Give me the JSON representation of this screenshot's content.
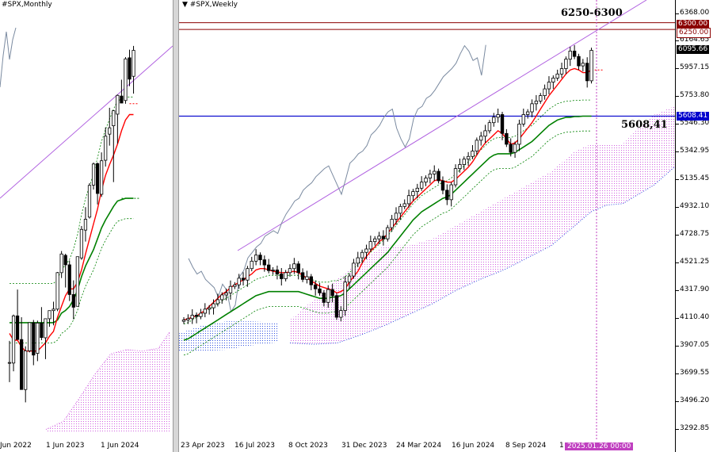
{
  "colors": {
    "bull": "#000000",
    "bear": "#000000",
    "tenkan": "#ff0000",
    "kijun": "#008000",
    "chikou": "#7a8aa0",
    "senkou_a": "#d060e0",
    "senkou_b": "#3050e0",
    "trendline": "#b060e0",
    "level_red": "#8b0000",
    "level_blue": "#0000cd",
    "vline": "#c040c0"
  },
  "monthly": {
    "title": "#SPX,Monthly",
    "time_labels": [
      "Jun 2022",
      "1 Jun 2023",
      "1 Jun 2024"
    ]
  },
  "weekly": {
    "title": "#SPX,Weekly",
    "time_labels": [
      "23 Apr 2023",
      "16 Jul 2023",
      "8 Oct 2023",
      "31 Dec 2023",
      "24 Mar 2024",
      "16 Jun 2024",
      "8 Sep 2024",
      "1"
    ],
    "cursor_time_label": "2025.01.26 00:00",
    "annotation_top": "6250-6300",
    "annotation_level": "5608,41"
  },
  "price_axis": {
    "ticks": [
      "6368.00",
      "6164.65",
      "5957.15",
      "5753.80",
      "5546.30",
      "5342.95",
      "5135.45",
      "4932.10",
      "4728.75",
      "4521.25",
      "4317.90",
      "4110.40",
      "3907.05",
      "3699.55",
      "3496.20",
      "3292.85"
    ],
    "tag_6300": "6300.00",
    "tag_6250": "6250.00",
    "tag_current": "6095.66",
    "tag_5608": "5608.41"
  },
  "chart_data": [
    {
      "type": "candlestick",
      "title": "#SPX,Monthly",
      "x": [
        "Jun 2022",
        "Jul 2022",
        "Aug 2022",
        "Sep 2022",
        "Oct 2022",
        "Nov 2022",
        "Dec 2022",
        "Jan 2023",
        "Feb 2023",
        "Mar 2023",
        "Apr 2023",
        "May 2023",
        "Jun 2023",
        "Jul 2023",
        "Aug 2023",
        "Sep 2023",
        "Oct 2023",
        "Nov 2023",
        "Dec 2023",
        "Jan 2024",
        "Feb 2024",
        "Mar 2024",
        "Apr 2024",
        "May 2024",
        "Jun 2024",
        "Jul 2024",
        "Aug 2024",
        "Sep 2024",
        "Oct 2024",
        "Nov 2024",
        "Dec 2024",
        "Jan 2025"
      ],
      "open": [
        3785,
        3781,
        4130,
        3955,
        3585,
        3871,
        4080,
        3853,
        4077,
        3968,
        4109,
        4169,
        4180,
        4450,
        4578,
        4508,
        4288,
        4201,
        4559,
        4765,
        4861,
        5098,
        5257,
        5030,
        5282,
        5475,
        5537,
        5623,
        5757,
        5724,
        6040,
        5903
      ],
      "high": [
        3945,
        4140,
        4325,
        4120,
        3905,
        4080,
        4100,
        4095,
        4195,
        4110,
        4170,
        4235,
        4455,
        4610,
        4590,
        4540,
        4393,
        4560,
        4795,
        4935,
        5112,
        5265,
        5265,
        5340,
        5525,
        5670,
        5652,
        5768,
        5878,
        6045,
        6100,
        6128
      ],
      "low": [
        3640,
        3720,
        3955,
        3585,
        3490,
        3860,
        3765,
        3795,
        3950,
        3810,
        4050,
        4060,
        4165,
        4410,
        4340,
        4240,
        4105,
        4200,
        4545,
        4680,
        4850,
        5065,
        4955,
        5010,
        5235,
        5390,
        5120,
        5405,
        5705,
        5700,
        5830,
        5775
      ],
      "close": [
        3785,
        4130,
        3955,
        3585,
        3871,
        4080,
        3840,
        4077,
        3970,
        4109,
        4169,
        4180,
        4450,
        4588,
        4508,
        4288,
        4194,
        4568,
        4770,
        4845,
        5096,
        5254,
        5036,
        5278,
        5460,
        5522,
        5648,
        5762,
        5705,
        6032,
        5882,
        6095
      ],
      "series": [
        {
          "name": "tenkan",
          "values": [
            4000,
            3950,
            3950,
            3900,
            3870,
            3870,
            3870,
            3870,
            3900,
            3930,
            3980,
            4015,
            4120,
            4200,
            4280,
            4330,
            4330,
            4380,
            4470,
            4590,
            4700,
            4810,
            4920,
            5060,
            5170,
            5250,
            5320,
            5400,
            5500,
            5580,
            5620,
            5620
          ]
        },
        {
          "name": "kijun",
          "values": [
            4080,
            4080,
            4080,
            4080,
            4080,
            4080,
            4080,
            4080,
            4080,
            4080,
            4080,
            4080,
            4100,
            4150,
            4170,
            4200,
            4250,
            4320,
            4420,
            4500,
            4560,
            4620,
            4700,
            4780,
            4840,
            4890,
            4940,
            4980,
            4990,
            5000,
            5000,
            5000
          ]
        }
      ]
    },
    {
      "type": "candlestick",
      "title": "#SPX,Weekly",
      "x_ticks": [
        "23 Apr 2023",
        "16 Jul 2023",
        "8 Oct 2023",
        "31 Dec 2023",
        "24 Mar 2024",
        "16 Jun 2024",
        "8 Sep 2024",
        "1"
      ],
      "close": [
        4100,
        4110,
        4135,
        4125,
        4150,
        4180,
        4190,
        4220,
        4250,
        4285,
        4300,
        4348,
        4360,
        4409,
        4395,
        4480,
        4535,
        4580,
        4545,
        4507,
        4465,
        4470,
        4440,
        4405,
        4450,
        4480,
        4515,
        4450,
        4400,
        4420,
        4360,
        4330,
        4300,
        4230,
        4325,
        4280,
        4120,
        4170,
        4380,
        4425,
        4520,
        4560,
        4600,
        4625,
        4680,
        4700,
        4720,
        4700,
        4783,
        4845,
        4890,
        4940,
        4960,
        5020,
        5050,
        5075,
        5120,
        5150,
        5180,
        5200,
        5130,
        5060,
        4990,
        5100,
        5220,
        5250,
        5290,
        5310,
        5350,
        5430,
        5460,
        5500,
        5560,
        5600,
        5620,
        5480,
        5400,
        5340,
        5400,
        5550,
        5620,
        5640,
        5700,
        5720,
        5760,
        5810,
        5860,
        5890,
        5920,
        5960,
        6030,
        6090,
        6050,
        5980,
        6000,
        5870,
        6095
      ],
      "series": [
        {
          "name": "tenkan",
          "values": [
            4100,
            4110,
            4120,
            4130,
            4150,
            4170,
            4200,
            4230,
            4260,
            4290,
            4310,
            4340,
            4360,
            4380,
            4395,
            4420,
            4440,
            4470,
            4480,
            4480,
            4470,
            4460,
            4455,
            4450,
            4450,
            4455,
            4460,
            4450,
            4430,
            4410,
            4390,
            4370,
            4350,
            4340,
            4330,
            4320,
            4300,
            4310,
            4330,
            4380,
            4420,
            4460,
            4520,
            4570,
            4610,
            4640,
            4680,
            4700,
            4740,
            4780,
            4820,
            4860,
            4900,
            4940,
            4980,
            5010,
            5040,
            5070,
            5100,
            5130,
            5140,
            5130,
            5120,
            5120,
            5140,
            5170,
            5200,
            5230,
            5270,
            5320,
            5370,
            5410,
            5440,
            5470,
            5500,
            5480,
            5440,
            5400,
            5410,
            5440,
            5480,
            5520,
            5560,
            5610,
            5660,
            5710,
            5760,
            5800,
            5840,
            5880,
            5920,
            5950,
            5960,
            5950,
            5930,
            5930,
            5950
          ]
        },
        {
          "name": "kijun",
          "values": [
            3950,
            3960,
            3980,
            4000,
            4020,
            4040,
            4060,
            4080,
            4100,
            4120,
            4140,
            4160,
            4180,
            4200,
            4220,
            4240,
            4260,
            4280,
            4290,
            4300,
            4310,
            4310,
            4310,
            4310,
            4310,
            4310,
            4310,
            4310,
            4300,
            4290,
            4280,
            4270,
            4260,
            4260,
            4260,
            4270,
            4270,
            4280,
            4300,
            4330,
            4360,
            4390,
            4420,
            4450,
            4480,
            4510,
            4540,
            4570,
            4600,
            4640,
            4680,
            4720,
            4760,
            4800,
            4840,
            4870,
            4900,
            4920,
            4940,
            4960,
            4980,
            5000,
            5010,
            5030,
            5060,
            5090,
            5120,
            5150,
            5180,
            5210,
            5240,
            5270,
            5300,
            5320,
            5330,
            5330,
            5330,
            5330,
            5340,
            5360,
            5380,
            5400,
            5420,
            5450,
            5480,
            5510,
            5540,
            5560,
            5580,
            5590,
            5600,
            5600,
            5605,
            5605,
            5608,
            5608,
            5608
          ]
        }
      ]
    }
  ]
}
